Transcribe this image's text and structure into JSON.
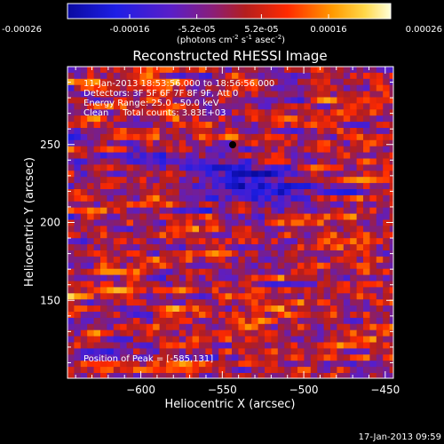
{
  "chart_data": {
    "type": "heatmap",
    "title": "Reconstructed RHESSI Image",
    "xlabel": "Heliocentric X (arcsec)",
    "ylabel": "Heliocentric Y (arcsec)",
    "xlim": [
      -645,
      -445
    ],
    "ylim": [
      100,
      300
    ],
    "x_ticks": [
      -600,
      -550,
      -500,
      -450
    ],
    "y_ticks": [
      150,
      200,
      250
    ],
    "colorbar": {
      "min": -0.00026,
      "max": 0.00026,
      "tick_values": [
        -0.00026,
        -0.00016,
        -5.2e-05,
        5.2e-05,
        0.00016,
        0.00026
      ],
      "tick_labels": [
        "-0.00026",
        "-0.00016",
        "-5.2e-05",
        "5.2e-05",
        "0.00016",
        "0.00026"
      ],
      "units": "(photons cm",
      "units_sup1": "-2",
      "units_mid": " s",
      "units_sup2": "-1",
      "units_mid2": " asec",
      "units_sup3": "-2",
      "units_end": ")"
    },
    "annotations": [
      "11-Jan-2013 18:53:56.000 to 18:56:56.000",
      "Detectors: 3F 5F 6F 7F 8F 9F, Att 0",
      "Energy Range: 25.0 - 50.0 keV",
      "Clean     Total counts: 3.83E+03"
    ],
    "peak_label": "Position of Peak = [-585,131]",
    "peak_position": [
      -585,
      131
    ],
    "colors": {
      "background": "#000000",
      "axes": "#ffffff"
    }
  },
  "timestamp": "17-Jan-2013 09:59"
}
